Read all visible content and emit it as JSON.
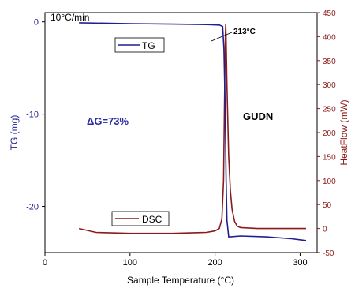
{
  "chart_data": {
    "type": "line",
    "title": "",
    "xlabel": "Sample Temperature (°C)",
    "ylabel_left": "TG (mg)",
    "ylabel_right": "HeatFlow (mW)",
    "xlim": [
      0,
      320
    ],
    "ylim_left": [
      -25,
      1
    ],
    "ylim_right": [
      -50,
      450
    ],
    "x_ticks": [
      0,
      100,
      200,
      300
    ],
    "y_left_ticks": [
      0,
      -10,
      -20
    ],
    "y_right_ticks": [
      -50,
      0,
      50,
      100,
      150,
      200,
      250,
      300,
      350,
      400,
      450
    ],
    "grid": false,
    "series": [
      {
        "name": "TG",
        "axis": "left",
        "color": "#1f1f8f",
        "x": [
          40,
          100,
          150,
          190,
          205,
          209,
          210.5,
          212,
          213,
          214,
          216,
          218,
          230,
          260,
          290,
          307
        ],
        "y": [
          -0.1,
          -0.2,
          -0.25,
          -0.3,
          -0.35,
          -0.5,
          -3,
          -10,
          -17,
          -21.5,
          -23.3,
          -23.3,
          -23.2,
          -23.3,
          -23.5,
          -23.7
        ]
      },
      {
        "name": "DSC",
        "axis": "right",
        "color": "#8b1a1a",
        "x": [
          40,
          60,
          100,
          150,
          190,
          200,
          205,
          208,
          210,
          211,
          212,
          212.5,
          213,
          214,
          216,
          218,
          220,
          223,
          226,
          230,
          250,
          280,
          307
        ],
        "y": [
          0,
          -8,
          -10,
          -10,
          -8,
          -5,
          0,
          20,
          100,
          250,
          390,
          425,
          400,
          300,
          150,
          80,
          40,
          15,
          5,
          2,
          0,
          0,
          0
        ]
      }
    ],
    "annotations": {
      "rate": "10°C/min",
      "peak": "213°C",
      "mass_loss": "ΔG=73%",
      "sample": "GUDN"
    },
    "legend": {
      "tg": "TG",
      "dsc": "DSC"
    }
  }
}
